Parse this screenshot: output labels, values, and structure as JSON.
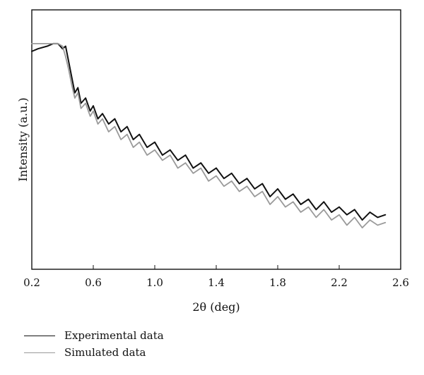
{
  "chart_data": {
    "type": "line",
    "title": "",
    "subtitle": "",
    "xlabel": "2θ (deg)",
    "ylabel": "Intensity (a.u.)",
    "xlim": [
      0.2,
      2.6
    ],
    "ylim": [
      0,
      1
    ],
    "x_ticks": [
      0.2,
      0.6,
      1.0,
      1.4,
      1.8,
      2.2,
      2.6
    ],
    "x_tick_labels": [
      "0.2",
      "0.6",
      "1.0",
      "1.4",
      "1.8",
      "2.2",
      "2.6"
    ],
    "y_ticks_shown": false,
    "grid": false,
    "legend_position": "bottom-left",
    "series": [
      {
        "name": "Experimental data",
        "color": "#111111",
        "x": [
          0.2,
          0.24,
          0.3,
          0.34,
          0.37,
          0.4,
          0.42,
          0.44,
          0.46,
          0.48,
          0.5,
          0.52,
          0.55,
          0.58,
          0.6,
          0.63,
          0.66,
          0.7,
          0.74,
          0.78,
          0.82,
          0.86,
          0.9,
          0.95,
          1.0,
          1.05,
          1.1,
          1.15,
          1.2,
          1.25,
          1.3,
          1.35,
          1.4,
          1.45,
          1.5,
          1.55,
          1.6,
          1.65,
          1.7,
          1.75,
          1.8,
          1.85,
          1.9,
          1.95,
          2.0,
          2.05,
          2.1,
          2.15,
          2.2,
          2.25,
          2.3,
          2.35,
          2.4,
          2.45,
          2.5
        ],
        "y": [
          0.84,
          0.85,
          0.86,
          0.87,
          0.87,
          0.85,
          0.86,
          0.8,
          0.74,
          0.68,
          0.7,
          0.64,
          0.66,
          0.61,
          0.63,
          0.58,
          0.6,
          0.56,
          0.58,
          0.53,
          0.55,
          0.5,
          0.52,
          0.47,
          0.49,
          0.44,
          0.46,
          0.42,
          0.44,
          0.39,
          0.41,
          0.37,
          0.39,
          0.35,
          0.37,
          0.33,
          0.35,
          0.31,
          0.33,
          0.28,
          0.31,
          0.27,
          0.29,
          0.25,
          0.27,
          0.23,
          0.26,
          0.22,
          0.24,
          0.21,
          0.23,
          0.19,
          0.22,
          0.2,
          0.21
        ]
      },
      {
        "name": "Simulated data",
        "color": "#9a9a9a",
        "x": [
          0.2,
          0.24,
          0.3,
          0.34,
          0.37,
          0.4,
          0.42,
          0.44,
          0.46,
          0.48,
          0.5,
          0.52,
          0.55,
          0.58,
          0.6,
          0.63,
          0.66,
          0.7,
          0.74,
          0.78,
          0.82,
          0.86,
          0.9,
          0.95,
          1.0,
          1.05,
          1.1,
          1.15,
          1.2,
          1.25,
          1.3,
          1.35,
          1.4,
          1.45,
          1.5,
          1.55,
          1.6,
          1.65,
          1.7,
          1.75,
          1.8,
          1.85,
          1.9,
          1.95,
          2.0,
          2.05,
          2.1,
          2.15,
          2.2,
          2.25,
          2.3,
          2.35,
          2.4,
          2.45,
          2.5
        ],
        "y": [
          0.87,
          0.87,
          0.87,
          0.87,
          0.87,
          0.86,
          0.82,
          0.77,
          0.71,
          0.66,
          0.68,
          0.62,
          0.64,
          0.59,
          0.61,
          0.56,
          0.58,
          0.53,
          0.55,
          0.5,
          0.52,
          0.47,
          0.49,
          0.44,
          0.46,
          0.42,
          0.44,
          0.39,
          0.41,
          0.37,
          0.39,
          0.34,
          0.36,
          0.32,
          0.34,
          0.3,
          0.32,
          0.28,
          0.3,
          0.25,
          0.28,
          0.24,
          0.26,
          0.22,
          0.24,
          0.2,
          0.23,
          0.19,
          0.21,
          0.17,
          0.2,
          0.16,
          0.19,
          0.17,
          0.18
        ]
      }
    ]
  }
}
